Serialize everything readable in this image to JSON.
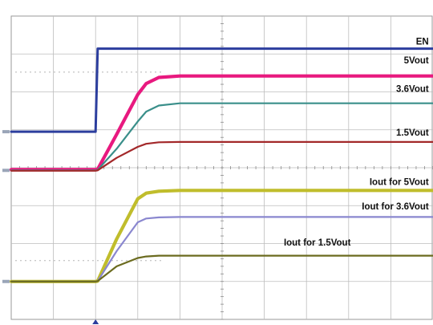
{
  "chart_data": {
    "type": "line",
    "title": "",
    "xlabel": "",
    "ylabel": "",
    "grid": true,
    "x_divisions": 10,
    "y_divisions": 8,
    "x": [
      0,
      2.0,
      2.05,
      2.5,
      3.0,
      3.2,
      3.5,
      4.0,
      5.0,
      6.0,
      7.0,
      8.0,
      9.0,
      10.0
    ],
    "series": [
      {
        "name": "EN",
        "color": "#2c3e9e",
        "label_pos": [
          9.9,
          7.25
        ],
        "values": [
          4.95,
          4.95,
          7.14,
          7.14,
          7.14,
          7.14,
          7.14,
          7.14,
          7.14,
          7.14,
          7.14,
          7.14,
          7.14,
          7.14
        ]
      },
      {
        "name": "5Vout",
        "color": "#e8197f",
        "label_pos": [
          9.9,
          6.75
        ],
        "values": [
          3.95,
          3.95,
          3.96,
          4.88,
          5.93,
          6.22,
          6.38,
          6.42,
          6.42,
          6.42,
          6.42,
          6.42,
          6.42,
          6.42
        ]
      },
      {
        "name": "3.6Vout",
        "color": "#3a8f8a",
        "label_pos": [
          9.9,
          6.0
        ],
        "values": [
          3.93,
          3.93,
          3.94,
          4.5,
          5.22,
          5.48,
          5.64,
          5.7,
          5.7,
          5.7,
          5.7,
          5.7,
          5.7,
          5.7
        ]
      },
      {
        "name": "1.5Vout",
        "color": "#a3282a",
        "label_pos": [
          9.9,
          4.85
        ],
        "values": [
          3.92,
          3.92,
          3.93,
          4.26,
          4.55,
          4.63,
          4.67,
          4.68,
          4.68,
          4.68,
          4.68,
          4.68,
          4.68,
          4.68
        ]
      },
      {
        "name": "Iout for 5Vout",
        "color": "#c0bd2c",
        "label_pos": [
          9.9,
          3.55
        ],
        "values": [
          1.0,
          1.0,
          1.01,
          2.12,
          3.18,
          3.33,
          3.38,
          3.4,
          3.4,
          3.4,
          3.4,
          3.4,
          3.4,
          3.4
        ]
      },
      {
        "name": "Iout for 3.6Vout",
        "color": "#8a87cf",
        "label_pos": [
          9.9,
          2.9
        ],
        "values": [
          1.0,
          1.0,
          1.01,
          1.8,
          2.56,
          2.66,
          2.69,
          2.7,
          2.7,
          2.7,
          2.7,
          2.7,
          2.7,
          2.7
        ]
      },
      {
        "name": "Iout for 1.5Vout",
        "color": "#6b6b1f",
        "label_pos": [
          8.05,
          1.95
        ],
        "values": [
          1.0,
          1.0,
          1.01,
          1.4,
          1.62,
          1.66,
          1.68,
          1.68,
          1.68,
          1.68,
          1.68,
          1.68,
          1.68,
          1.68
        ]
      }
    ],
    "colors": {
      "background": "#ffffff",
      "grid": "#bdbdbd",
      "frame": "#9a9a9a"
    }
  }
}
